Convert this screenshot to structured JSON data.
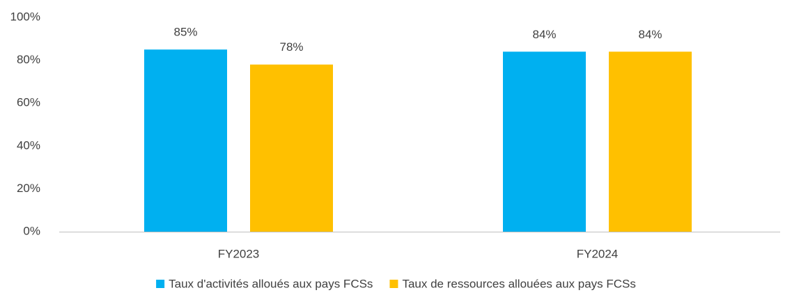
{
  "chart_data": {
    "type": "bar",
    "categories": [
      "FY2023",
      "FY2024"
    ],
    "series": [
      {
        "name": "Taux d'activités alloués aux pays FCSs",
        "color": "#00b0f0",
        "values": [
          85,
          84
        ],
        "value_labels": [
          "85%",
          "84%"
        ]
      },
      {
        "name": "Taux de ressources allouées aux pays FCSs",
        "color": "#ffc000",
        "values": [
          78,
          84
        ],
        "value_labels": [
          "78%",
          "84%"
        ]
      }
    ],
    "ylim": [
      0,
      100
    ],
    "yticks": [
      {
        "value": 0,
        "label": "0%"
      },
      {
        "value": 20,
        "label": "20%"
      },
      {
        "value": 40,
        "label": "40%"
      },
      {
        "value": 60,
        "label": "60%"
      },
      {
        "value": 80,
        "label": "80%"
      },
      {
        "value": 100,
        "label": "100%"
      }
    ],
    "legend": "bottom"
  }
}
